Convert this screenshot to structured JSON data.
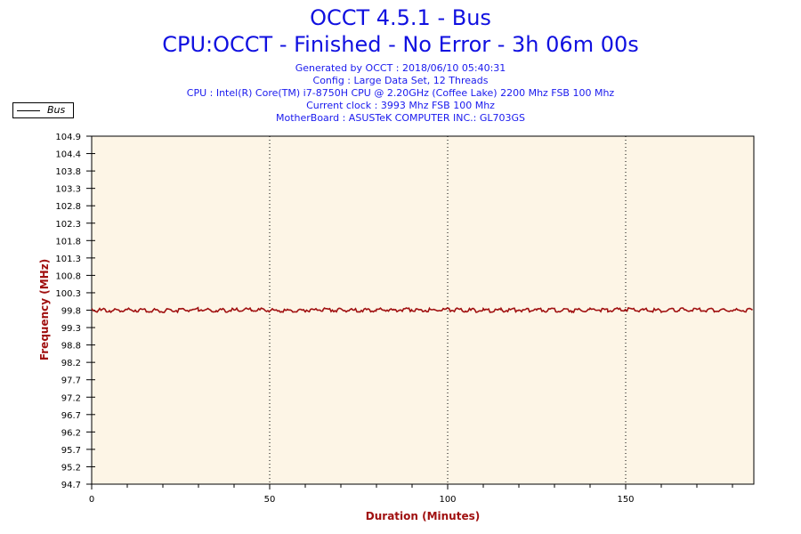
{
  "title": "OCCT 4.5.1 - Bus",
  "subtitle": "CPU:OCCT - Finished - No Error - 3h 06m 00s",
  "info_lines": [
    "Generated by OCCT : 2018/06/10 05:40:31",
    "Config : Large Data Set, 12 Threads",
    "CPU : Intel(R) Core(TM) i7-8750H CPU @ 2.20GHz (Coffee Lake) 2200 Mhz FSB 100 Mhz",
    "Current clock : 3993 Mhz FSB 100 Mhz",
    "MotherBoard : ASUSTeK COMPUTER INC.: GL703GS"
  ],
  "chart_data": {
    "type": "line",
    "xlabel": "Duration (Minutes)",
    "ylabel": "Frequency (MHz)",
    "xlim": [
      0,
      186
    ],
    "ylim": [
      94.7,
      104.9
    ],
    "xticks": [
      "0",
      "50",
      "100",
      "150"
    ],
    "yticks": [
      "104.9",
      "104.4",
      "103.8",
      "103.3",
      "102.8",
      "102.3",
      "101.8",
      "101.3",
      "100.8",
      "100.3",
      "99.8",
      "99.3",
      "98.8",
      "98.2",
      "97.7",
      "97.2",
      "96.7",
      "96.2",
      "95.7",
      "95.2",
      "94.7"
    ],
    "grid": "vertical dotted at major x ticks",
    "legend": "top-left",
    "series": [
      {
        "name": "Bus",
        "color": "#a01010",
        "x": [
          0,
          5,
          10,
          15,
          20,
          25,
          30,
          35,
          40,
          45,
          50,
          55,
          60,
          65,
          70,
          75,
          80,
          85,
          90,
          95,
          100,
          105,
          110,
          115,
          120,
          125,
          130,
          135,
          140,
          145,
          150,
          155,
          160,
          165,
          170,
          175,
          180,
          186
        ],
        "y": [
          99.8,
          99.79,
          99.81,
          99.8,
          99.78,
          99.8,
          99.82,
          99.79,
          99.8,
          99.81,
          99.8,
          99.79,
          99.8,
          99.82,
          99.8,
          99.79,
          99.81,
          99.8,
          99.82,
          99.8,
          99.81,
          99.8,
          99.79,
          99.8,
          99.81,
          99.8,
          99.8,
          99.79,
          99.81,
          99.8,
          99.82,
          99.8,
          99.79,
          99.81,
          99.8,
          99.8,
          99.79,
          99.8
        ]
      }
    ]
  },
  "colors": {
    "title": "#1010e0",
    "axis_label": "#a01010",
    "plot_bg": "#fdf5e6"
  }
}
